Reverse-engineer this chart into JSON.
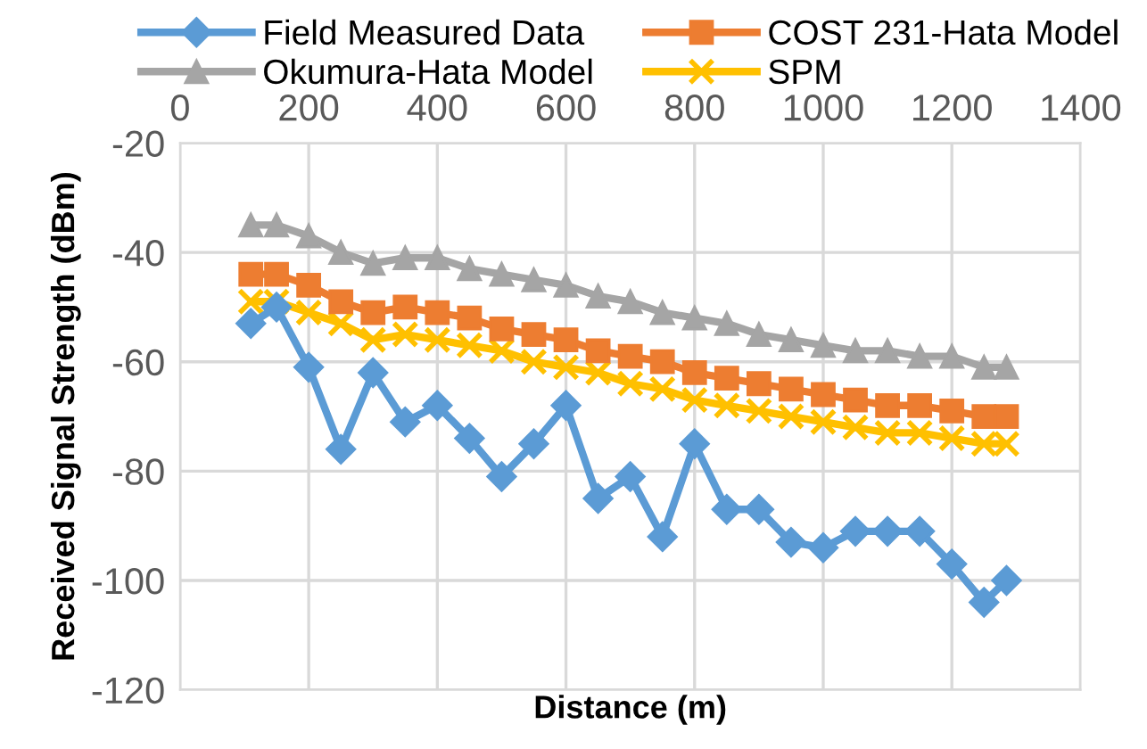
{
  "chart_data": {
    "type": "line",
    "xlabel": "Distance (m)",
    "ylabel": "Received Signal Strength (dBm)",
    "x": [
      110,
      150,
      200,
      250,
      300,
      350,
      400,
      450,
      500,
      550,
      600,
      650,
      700,
      750,
      800,
      850,
      900,
      950,
      1000,
      1050,
      1100,
      1150,
      1200,
      1250,
      1285
    ],
    "series": [
      {
        "name": "Field Measured Data",
        "color": "#5b9bd5",
        "marker": "diamond",
        "values": [
          -53,
          -50,
          -61,
          -76,
          -62,
          -71,
          -68,
          -74,
          -81,
          -75,
          -68,
          -85,
          -81,
          -92,
          -75,
          -87,
          -87,
          -93,
          -94,
          -91,
          -91,
          -91,
          -97,
          -104,
          -100
        ]
      },
      {
        "name": "COST 231-Hata Model",
        "color": "#ed7d31",
        "marker": "square",
        "values": [
          -44,
          -44,
          -46,
          -49,
          -51,
          -50,
          -51,
          -52,
          -54,
          -55,
          -56,
          -58,
          -59,
          -60,
          -62,
          -63,
          -64,
          -65,
          -66,
          -67,
          -68,
          -68,
          -69,
          -70,
          -70
        ]
      },
      {
        "name": "Okumura-Hata Model",
        "color": "#a5a5a5",
        "marker": "triangle",
        "values": [
          -35,
          -35,
          -37,
          -40,
          -42,
          -41,
          -41,
          -43,
          -44,
          -45,
          -46,
          -48,
          -49,
          -51,
          -52,
          -53,
          -55,
          -56,
          -57,
          -58,
          -58,
          -59,
          -59,
          -61,
          -61
        ]
      },
      {
        "name": "SPM",
        "color": "#ffc000",
        "marker": "cross",
        "values": [
          -49,
          -49,
          -51,
          -53,
          -56,
          -55,
          -56,
          -57,
          -58,
          -60,
          -61,
          -62,
          -64,
          -65,
          -67,
          -68,
          -69,
          -70,
          -71,
          -72,
          -73,
          -73,
          -74,
          -75,
          -75
        ]
      }
    ],
    "xlim": [
      0,
      1400
    ],
    "xticks": [
      0,
      200,
      400,
      600,
      800,
      1000,
      1200,
      1400
    ],
    "ylim": [
      -120,
      -20
    ],
    "yticks": [
      -120,
      -100,
      -80,
      -60,
      -40,
      -20
    ],
    "grid": true,
    "legend": "top"
  }
}
